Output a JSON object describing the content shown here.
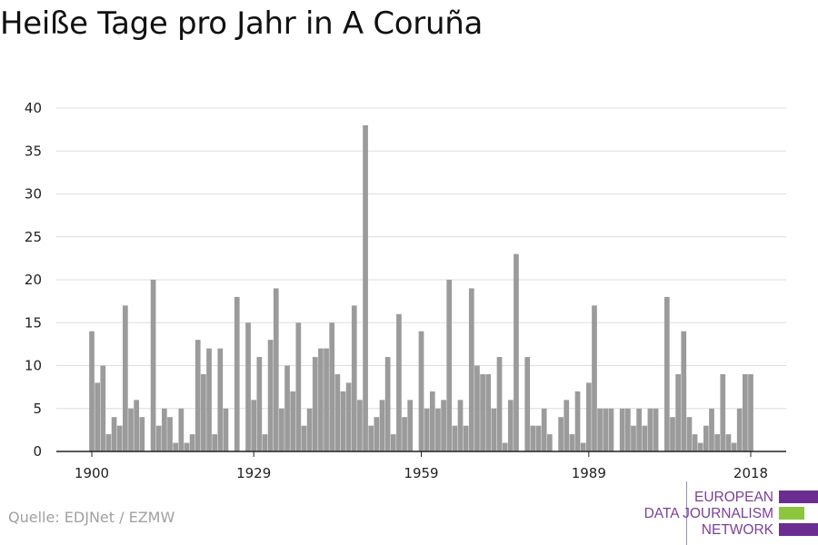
{
  "title": "Heiße Tage pro Jahr in A Coruña",
  "source": "Quelle: EDJNet / EZMW",
  "logo": {
    "lines": [
      "EUROPEAN",
      "DATA JOURNALISM",
      "NETWORK"
    ],
    "colors": {
      "purple": "#6b2d91",
      "green": "#8cc63f",
      "text": "#7a3f9a"
    }
  },
  "colors": {
    "bar": "#9b9b9b",
    "grid": "#dddddd",
    "axis": "#222222"
  },
  "chart_data": {
    "type": "bar",
    "title": "Heiße Tage pro Jahr in A Coruña",
    "xlabel": "",
    "ylabel": "",
    "x_start": 1900,
    "x_end": 2018,
    "xticks": [
      1900,
      1929,
      1959,
      1989,
      2018
    ],
    "yticks": [
      0,
      5,
      10,
      15,
      20,
      25,
      30,
      35,
      40
    ],
    "ylim": [
      0,
      40
    ],
    "grid": true,
    "legend": "none",
    "values": [
      14,
      8,
      10,
      2,
      4,
      3,
      17,
      5,
      6,
      4,
      0,
      20,
      3,
      5,
      4,
      1,
      5,
      1,
      2,
      13,
      9,
      12,
      2,
      12,
      5,
      0,
      18,
      0,
      15,
      6,
      11,
      2,
      13,
      19,
      5,
      10,
      7,
      15,
      3,
      5,
      11,
      12,
      12,
      15,
      9,
      7,
      8,
      17,
      6,
      38,
      3,
      4,
      6,
      11,
      2,
      16,
      4,
      6,
      0,
      14,
      5,
      7,
      5,
      6,
      20,
      3,
      6,
      3,
      19,
      10,
      9,
      9,
      5,
      11,
      1,
      6,
      23,
      0,
      11,
      3,
      3,
      5,
      2,
      0,
      4,
      6,
      2,
      7,
      1,
      8,
      17,
      5,
      5,
      5,
      0,
      5,
      5,
      3,
      5,
      3,
      5,
      5,
      0,
      18,
      4,
      9,
      14,
      4,
      2,
      1,
      3,
      5,
      2,
      9,
      2,
      1,
      5,
      9,
      9
    ]
  }
}
